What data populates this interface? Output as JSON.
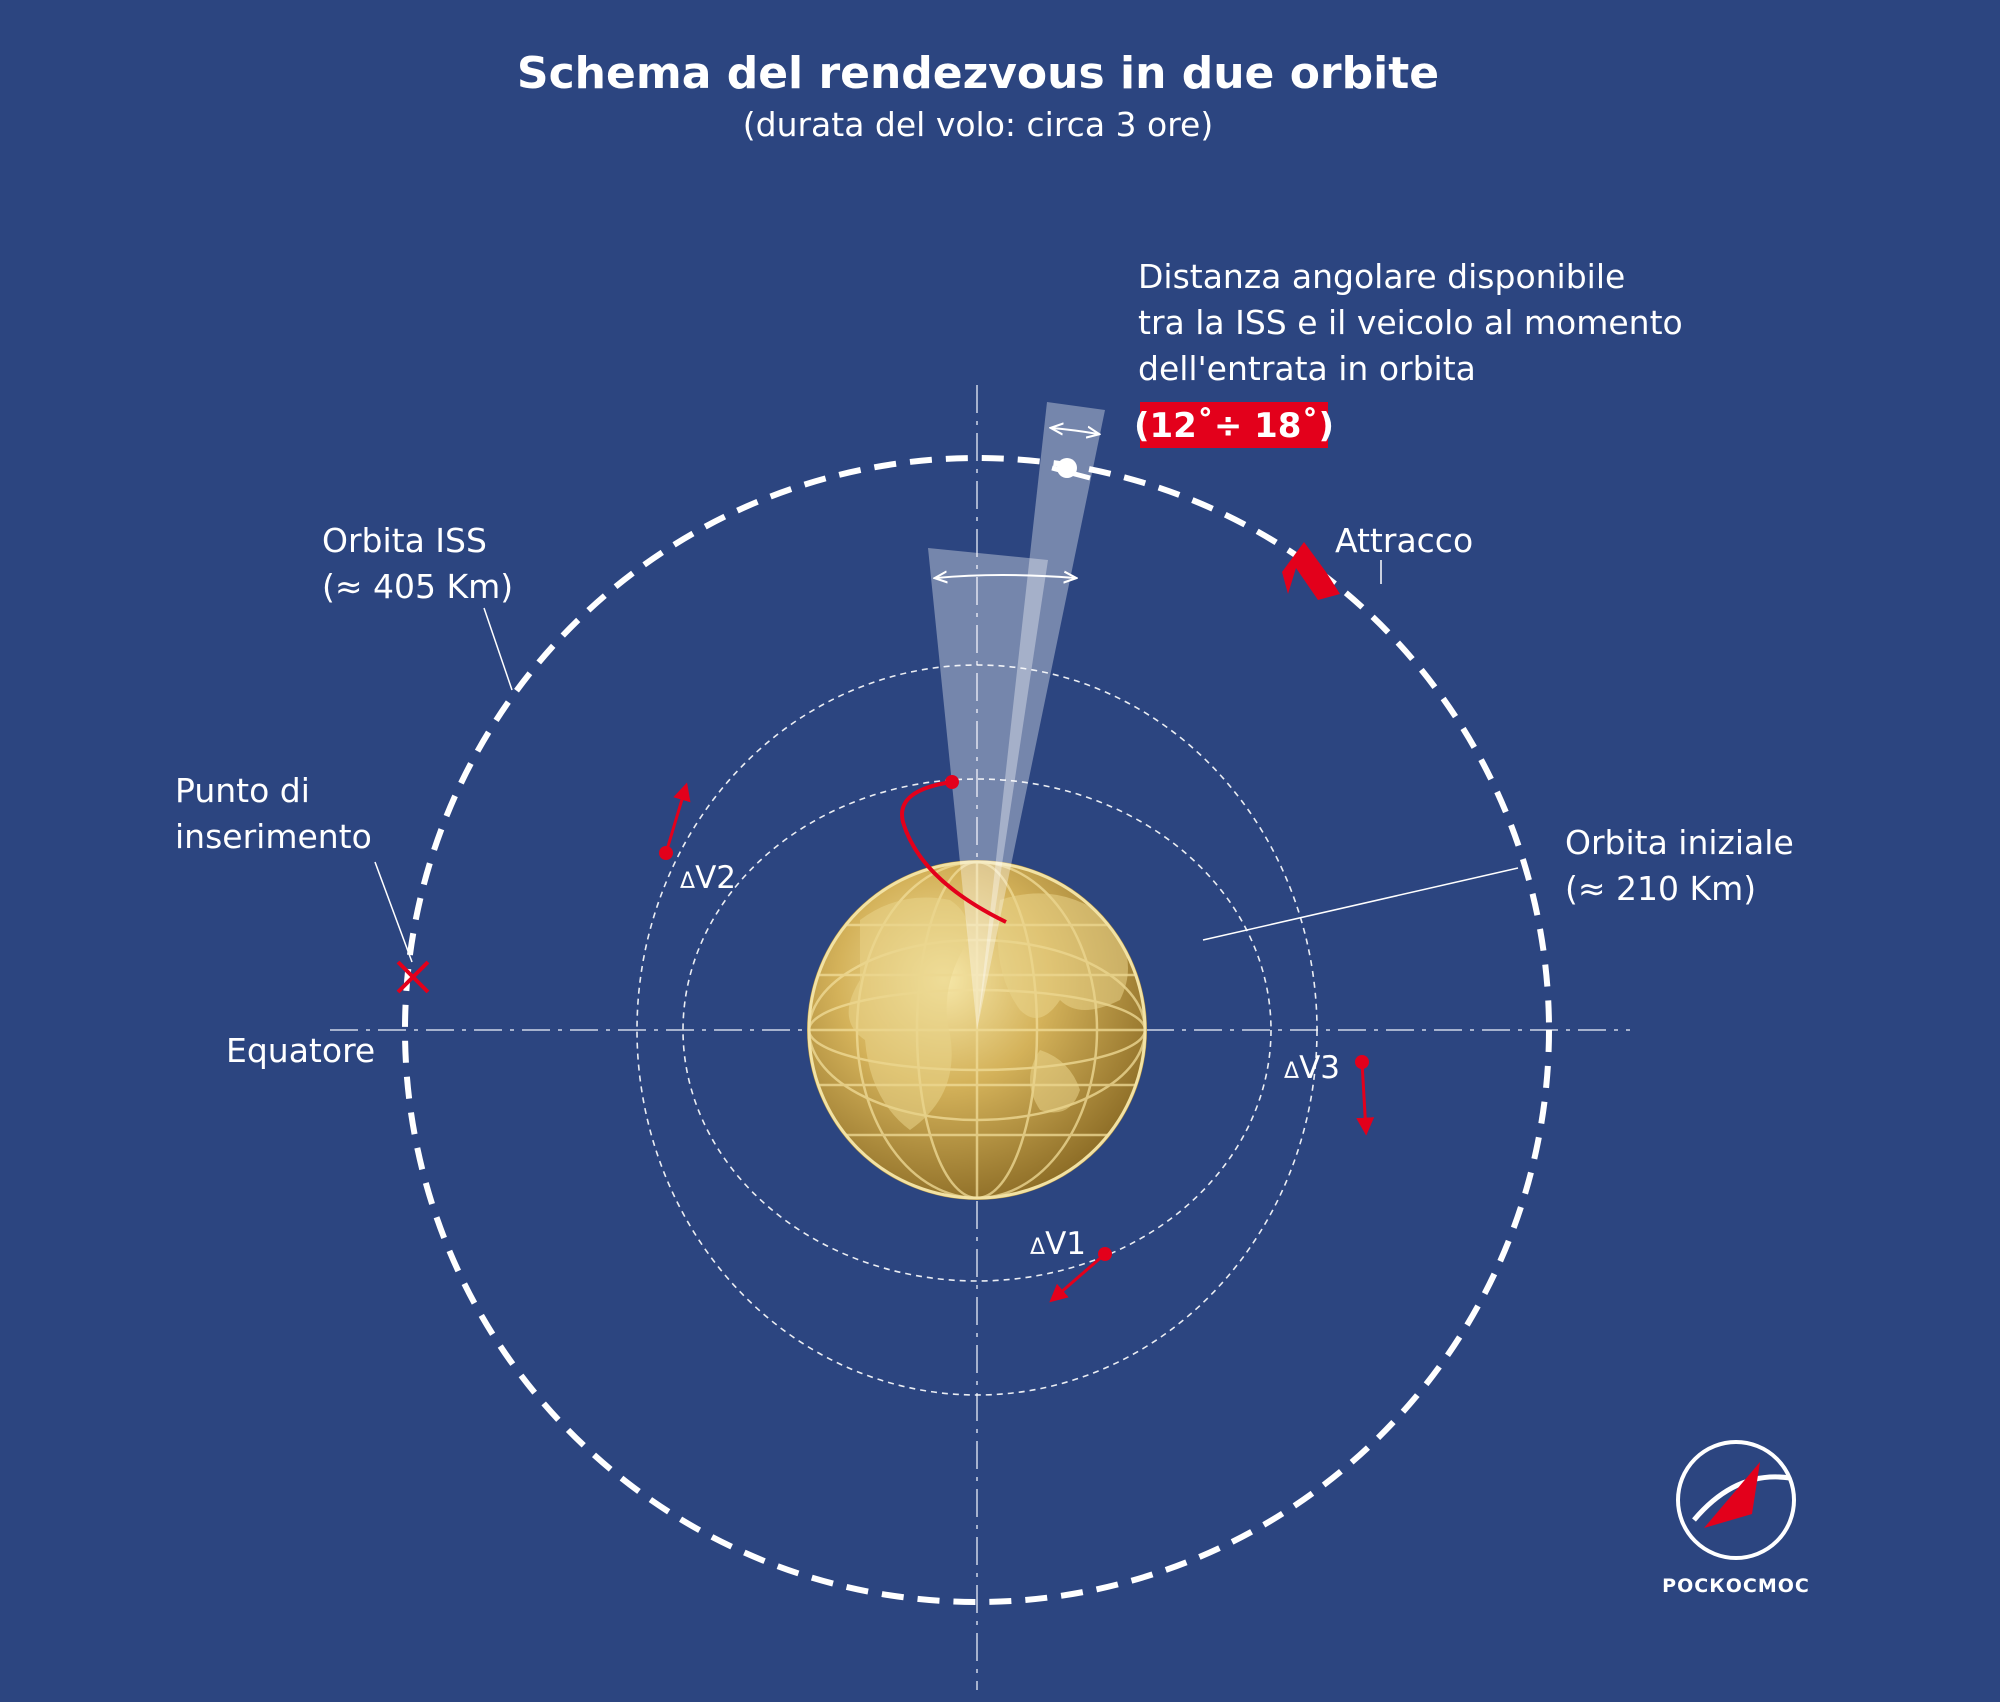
{
  "title": "Schema del rendezvous in due orbite",
  "subtitle": "(durata del volo: circa 3 ore)",
  "angular_distance": {
    "lines": [
      "Distanza angolare disponibile",
      "tra la ISS e il veicolo al momento",
      "dell'entrata in orbita"
    ],
    "value": "(12˚÷ 18˚)"
  },
  "iss_orbit": {
    "name": "Orbita ISS",
    "altitude": "(≈ 405 Km)"
  },
  "initial_orbit": {
    "name": "Orbita iniziale",
    "altitude": "(≈ 210 Km)"
  },
  "docking": "Attracco",
  "insertion_point": {
    "line1": "Punto di",
    "line2": "inserimento"
  },
  "equator": "Equatore",
  "maneuvers": {
    "dv1": {
      "prefix": "Δ",
      "label": "V",
      "sub": "1"
    },
    "dv2": {
      "prefix": "Δ",
      "label": "V",
      "sub": "2"
    },
    "dv3": {
      "prefix": "Δ",
      "label": "V",
      "sub": "3"
    }
  },
  "logo_text": "РОСКОСМОС",
  "colors": {
    "background": "#2c4580",
    "accent_red": "#e3001b",
    "orbit_white": "#ffffff",
    "earth_gold": "#c9a64a"
  }
}
